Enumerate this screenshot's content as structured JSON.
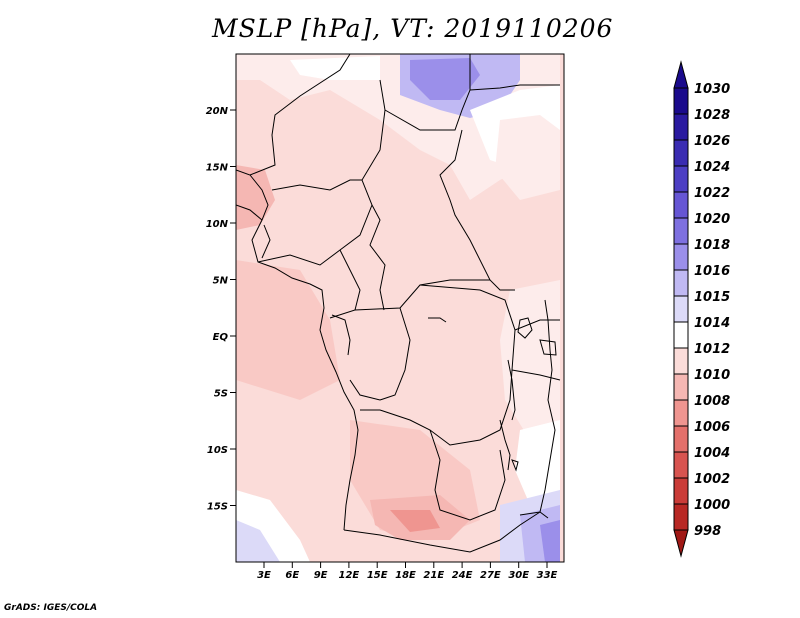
{
  "title": "MSLP [hPa], VT: 2019110206",
  "credit": "GrADS: IGES/COLA",
  "lat_labels": [
    "20N",
    "15N",
    "10N",
    "5N",
    "EQ",
    "5S",
    "10S",
    "15S"
  ],
  "lon_labels": [
    "3E",
    "6E",
    "9E",
    "12E",
    "15E",
    "18E",
    "21E",
    "24E",
    "27E",
    "30E",
    "33E"
  ],
  "colorbar": {
    "labels": [
      "1030",
      "1028",
      "1026",
      "1024",
      "1022",
      "1020",
      "1018",
      "1016",
      "1015",
      "1014",
      "1012",
      "1010",
      "1008",
      "1006",
      "1004",
      "1002",
      "1000",
      "998"
    ],
    "colors": [
      "#1a0a8c",
      "#2a1aa0",
      "#3a2cb2",
      "#4d3fc4",
      "#6656d4",
      "#7e70e0",
      "#9b8fea",
      "#c0b9f3",
      "#dcdaf8",
      "#ffffff",
      "#fbdcd9",
      "#f5b7b3",
      "#ef9590",
      "#e4706b",
      "#d85450",
      "#ca3c38",
      "#b82824",
      "#a01815"
    ]
  }
}
